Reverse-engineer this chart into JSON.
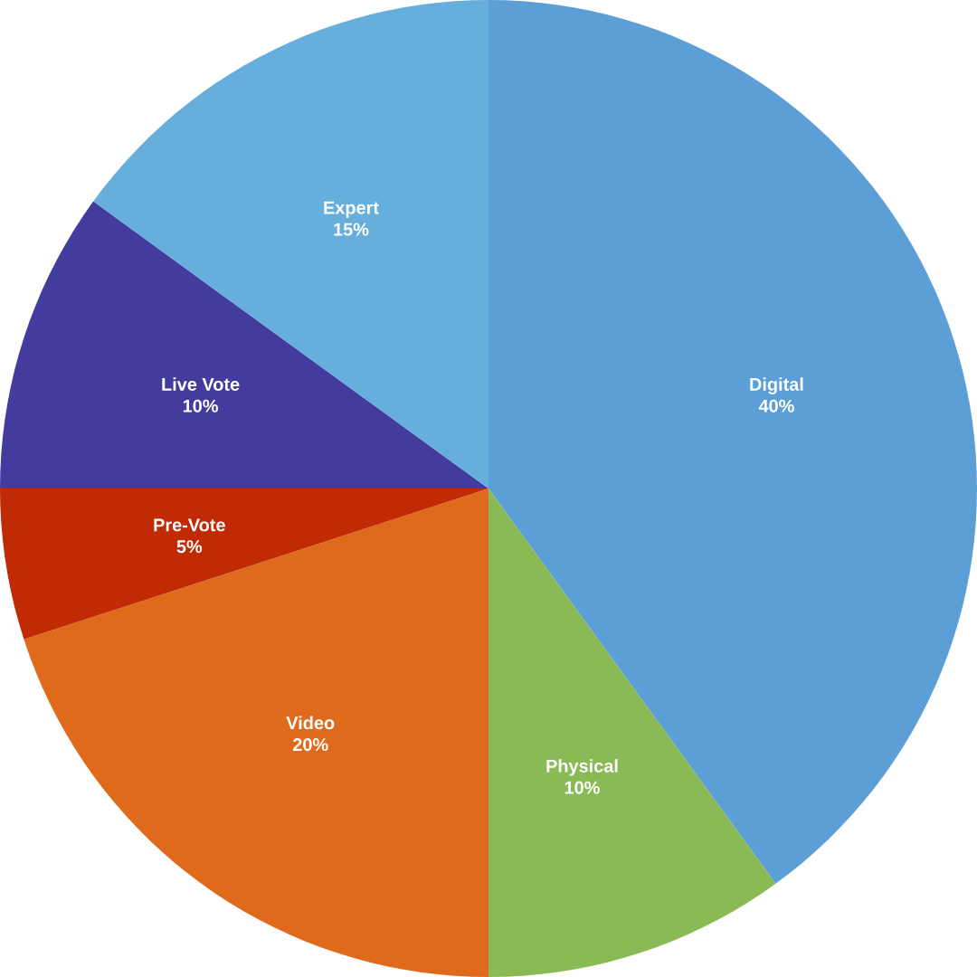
{
  "chart_data": {
    "type": "pie",
    "categories": [
      "Digital",
      "Physical",
      "Video",
      "Pre-Vote",
      "Live Vote",
      "Expert"
    ],
    "values": [
      40,
      10,
      20,
      5,
      10,
      15
    ],
    "value_labels": [
      "40%",
      "10%",
      "20%",
      "5%",
      "10%",
      "15%"
    ],
    "colors": [
      "#5b9fd6",
      "#8aba55",
      "#e06a1c",
      "#c02a05",
      "#433c9e",
      "#66aedc"
    ]
  }
}
